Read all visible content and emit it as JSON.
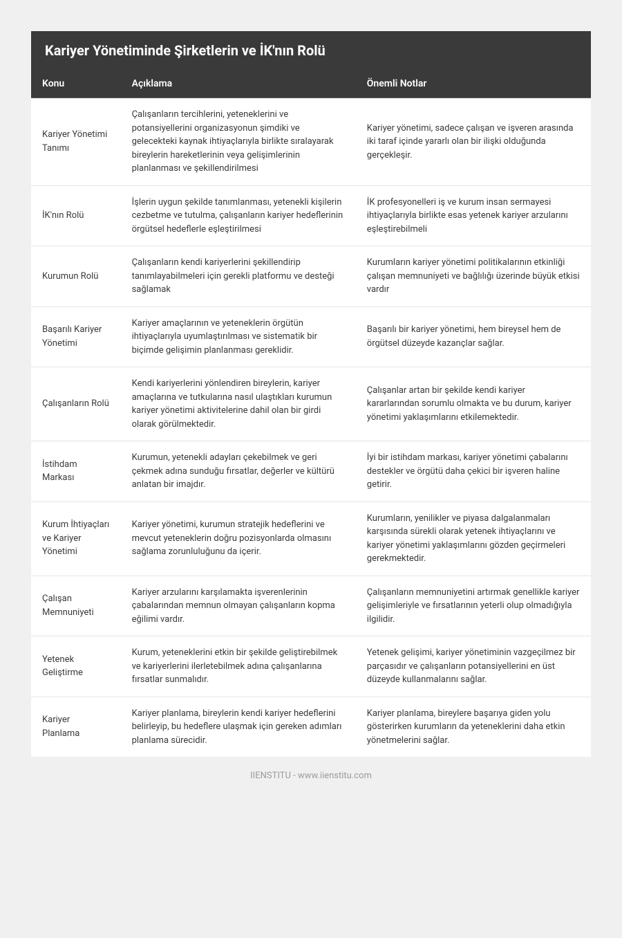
{
  "title": "Kariyer Yönetiminde Şirketlerin ve İK'nın Rolü",
  "footer": "IIENSTITU - www.iienstitu.com",
  "table": {
    "columns": [
      "Konu",
      "Açıklama",
      "Önemli Notlar"
    ],
    "rows": [
      [
        "Kariyer Yönetimi Tanımı",
        "Çalışanların tercihlerini, yeteneklerini ve potansiyellerini organizasyonun şimdiki ve gelecekteki kaynak ihtiyaçlarıyla birlikte sıralayarak bireylerin hareketlerinin veya gelişimlerinin planlanması ve şekillendirilmesi",
        "Kariyer yönetimi, sadece çalışan ve işveren arasında iki taraf içinde yararlı olan bir ilişki olduğunda gerçekleşir."
      ],
      [
        "İK'nın Rolü",
        "İşlerin uygun şekilde tanımlanması, yetenekli kişilerin cezbetme ve tutulma, çalışanların kariyer hedeflerinin örgütsel hedeflerle eşleştirilmesi",
        "İK profesyonelleri iş ve kurum insan sermayesi ihtiyaçlarıyla birlikte esas yetenek kariyer arzularını eşleştirebilmeli"
      ],
      [
        "Kurumun Rolü",
        "Çalışanların kendi kariyerlerini şekillendirip tanımlayabilmeleri için gerekli platformu ve desteği sağlamak",
        "Kurumların kariyer yönetimi politikalarının etkinliği çalışan memnuniyeti ve bağlılığı üzerinde büyük etkisi vardır"
      ],
      [
        "Başarılı Kariyer Yönetimi",
        "Kariyer amaçlarının ve yeteneklerin örgütün ihtiyaçlarıyla uyumlaştırılması ve sistematik bir biçimde gelişimin planlanması gereklidir.",
        "Başarılı bir kariyer yönetimi, hem bireysel hem de örgütsel düzeyde kazançlar sağlar."
      ],
      [
        "Çalışanların Rolü",
        "Kendi kariyerlerini yönlendiren bireylerin, kariyer amaçlarına ve tutkularına nasıl ulaştıkları kurumun kariyer yönetimi aktivitelerine dahil olan bir girdi olarak görülmektedir.",
        "Çalışanlar artan bir şekilde kendi kariyer kararlarından sorumlu olmakta ve bu durum, kariyer yönetimi yaklaşımlarını etkilemektedir."
      ],
      [
        "İstihdam Markası",
        "Kurumun, yetenekli adayları çekebilmek ve geri çekmek adına sunduğu fırsatlar, değerler ve kültürü anlatan bir imajdır.",
        "İyi bir istihdam markası, kariyer yönetimi çabalarını destekler ve örgütü daha çekici bir işveren haline getirir."
      ],
      [
        "Kurum İhtiyaçları ve Kariyer Yönetimi",
        "Kariyer yönetimi, kurumun stratejik hedeflerini ve mevcut yeteneklerin doğru pozisyonlarda olmasını sağlama zorunluluğunu da içerir.",
        "Kurumların, yenilikler ve piyasa dalgalanmaları karşısında sürekli olarak yetenek ihtiyaçlarını ve kariyer yönetimi yaklaşımlarını gözden geçirmeleri gerekmektedir."
      ],
      [
        "Çalışan Memnuniyeti",
        "Kariyer arzularını karşılamakta işverenlerinin çabalarından memnun olmayan çalışanların kopma eğilimi vardır.",
        "Çalışanların memnuniyetini artırmak genellikle kariyer gelişimleriyle ve fırsatlarının yeterli olup olmadığıyla ilgilidir."
      ],
      [
        "Yetenek Geliştirme",
        "Kurum, yeteneklerini etkin bir şekilde geliştirebilmek ve kariyerlerini ilerletebilmek adına çalışanlarına fırsatlar sunmalıdır.",
        "Yetenek gelişimi, kariyer yönetiminin vazgeçilmez bir parçasıdır ve çalışanların potansiyellerini en üst düzeyde kullanmalarını sağlar."
      ],
      [
        "Kariyer Planlama",
        "Kariyer planlama, bireylerin kendi kariyer hedeflerini belirleyip, bu hedeflere ulaşmak için gereken adımları planlama sürecidir.",
        "Kariyer planlama, bireylere başarıya giden yolu gösterirken kurumların da yeteneklerini daha etkin yönetmelerini sağlar."
      ]
    ]
  },
  "styling": {
    "header_bg": "#3a3a3a",
    "header_text": "#ffffff",
    "body_bg": "#f0f0f0",
    "container_bg": "#ffffff",
    "cell_text": "#3a3a3a",
    "border_color": "#e5e5e5",
    "footer_text": "#9a9a9a",
    "title_fontsize": 20,
    "header_fontsize": 14,
    "cell_fontsize": 13,
    "footer_fontsize": 13
  }
}
